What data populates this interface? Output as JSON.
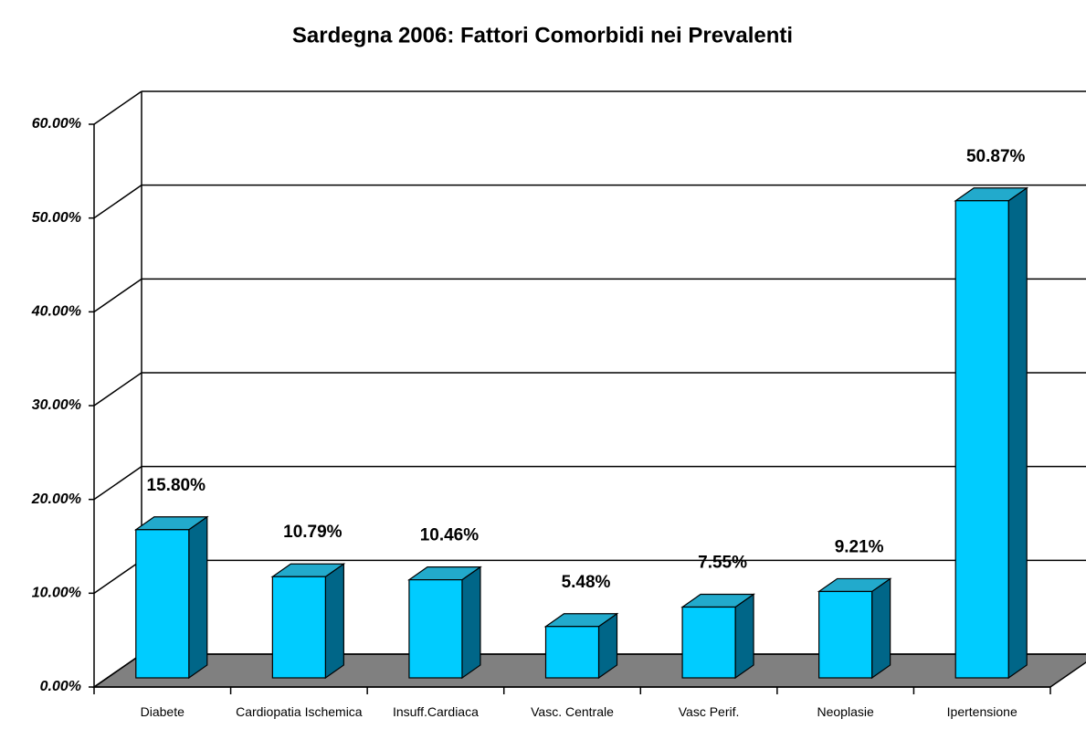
{
  "chart_data": {
    "type": "bar3d",
    "title": "Sardegna 2006: Fattori Comorbidi nei Prevalenti",
    "categories": [
      "Diabete",
      "Cardiopatia Ischemica",
      "Insuff.Cardiaca",
      "Vasc. Centrale",
      "Vasc Perif.",
      "Neoplasie",
      "Ipertensione"
    ],
    "values": [
      15.8,
      10.79,
      10.46,
      5.48,
      7.55,
      9.21,
      50.87
    ],
    "value_labels": [
      "15.80%",
      "10.79%",
      "10.46%",
      "5.48%",
      "7.55%",
      "9.21%",
      "50.87%"
    ],
    "color": "#00ccff",
    "ylim": [
      0,
      60
    ],
    "yticks": [
      {
        "value": 0,
        "label": "0.00%"
      },
      {
        "value": 10,
        "label": "10.00%"
      },
      {
        "value": 20,
        "label": "20.00%"
      },
      {
        "value": 30,
        "label": "30.00%"
      },
      {
        "value": 40,
        "label": "40.00%"
      },
      {
        "value": 50,
        "label": "50.00%"
      },
      {
        "value": 60,
        "label": "60.00%"
      }
    ],
    "grid": true
  }
}
